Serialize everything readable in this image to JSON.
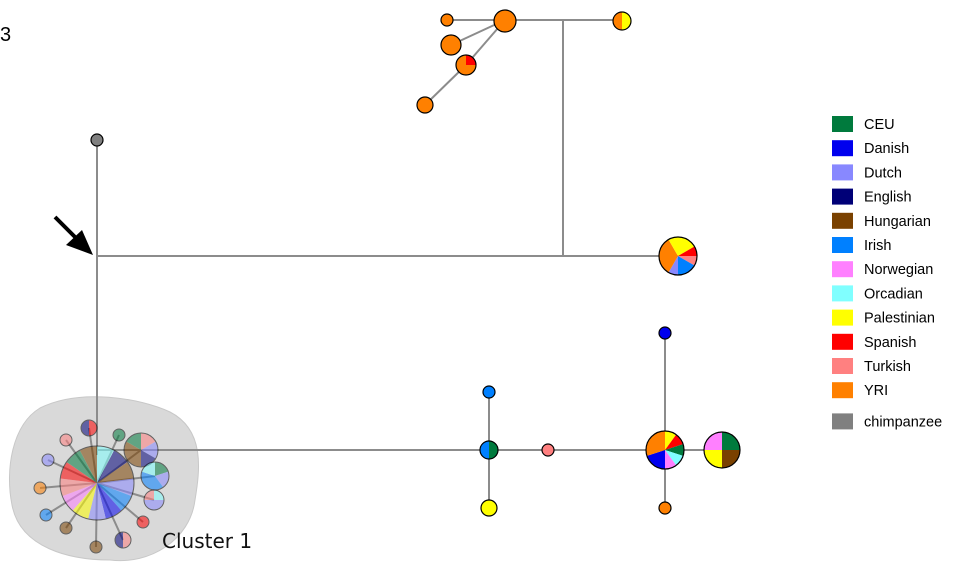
{
  "panel_label": "3",
  "cluster_label": "Cluster 1",
  "legend": [
    {
      "name": "CEU",
      "color": "#007a3d"
    },
    {
      "name": "Danish",
      "color": "#0000ee"
    },
    {
      "name": "Dutch",
      "color": "#8888ff"
    },
    {
      "name": "English",
      "color": "#000077"
    },
    {
      "name": "Hungarian",
      "color": "#7a4100"
    },
    {
      "name": "Irish",
      "color": "#0080ff"
    },
    {
      "name": "Norwegian",
      "color": "#ff80ff"
    },
    {
      "name": "Orcadian",
      "color": "#80ffff"
    },
    {
      "name": "Palestinian",
      "color": "#ffff00"
    },
    {
      "name": "Spanish",
      "color": "#ff0000"
    },
    {
      "name": "Turkish",
      "color": "#ff8080"
    },
    {
      "name": "YRI",
      "color": "#ff8000"
    },
    {
      "name": "chimpanzee",
      "color": "#808080"
    }
  ],
  "annotation": {
    "arrow": "arrow-pointing-to-root-node"
  }
}
